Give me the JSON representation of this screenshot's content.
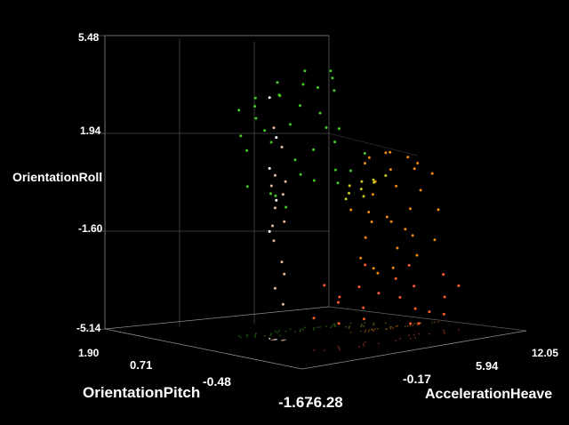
{
  "chart_data": {
    "type": "scatter",
    "projection": "3d",
    "title": "",
    "background": "#000000",
    "grid": true,
    "box_color": "#9a9a9a",
    "axes": {
      "z": {
        "label": "OrientationRoll",
        "range": [
          -5.14,
          5.48
        ],
        "ticks": [
          "5.48",
          "1.94",
          "-1.60",
          "-5.14"
        ]
      },
      "pitch": {
        "label": "OrientationPitch",
        "range": [
          -1.67,
          1.9
        ],
        "ticks": [
          "1.90",
          "0.71",
          "-0.48",
          "-1.67"
        ]
      },
      "heave": {
        "label": "AccelerationHeave",
        "range": [
          -6.28,
          12.05
        ],
        "ticks": [
          "-6.28",
          "-0.17",
          "5.94",
          "12.05"
        ]
      }
    },
    "series": [
      {
        "color": "#44cc22",
        "points": [
          [
            -1.2,
            0.6,
            3.6
          ],
          [
            -0.8,
            0.4,
            3.9
          ],
          [
            -0.3,
            0.5,
            4.1
          ],
          [
            0.2,
            0.6,
            3.2
          ],
          [
            0.8,
            0.3,
            4.3
          ],
          [
            1.5,
            0.5,
            4.6
          ],
          [
            2.1,
            0.6,
            4.0
          ],
          [
            2.9,
            0.4,
            3.7
          ],
          [
            3.6,
            0.5,
            4.4
          ],
          [
            4.2,
            0.6,
            4.8
          ],
          [
            4.8,
            0.5,
            4.2
          ],
          [
            5.4,
            0.4,
            4.9
          ],
          [
            6.0,
            0.5,
            4.5
          ],
          [
            6.6,
            0.6,
            3.9
          ],
          [
            1.0,
            0.5,
            2.3
          ],
          [
            2.5,
            0.4,
            1.6
          ],
          [
            3.4,
            0.5,
            0.9
          ],
          [
            -0.5,
            0.6,
            0.6
          ],
          [
            0.5,
            0.4,
            0.4
          ],
          [
            1.8,
            0.6,
            0.1
          ],
          [
            4.5,
            0.5,
            0.6
          ],
          [
            5.8,
            0.4,
            1.0
          ],
          [
            6.9,
            0.6,
            0.3
          ],
          [
            7.5,
            0.5,
            0.8
          ],
          [
            8.2,
            0.4,
            1.5
          ],
          [
            5.0,
            0.5,
            3.2
          ],
          [
            5.5,
            0.5,
            2.6
          ],
          [
            6.2,
            0.5,
            2.0
          ],
          [
            -1.5,
            0.5,
            2.7
          ],
          [
            -1.0,
            0.5,
            2.1
          ],
          [
            0.0,
            0.4,
            2.9
          ],
          [
            3.0,
            0.6,
            2.8
          ],
          [
            4.0,
            0.4,
            1.9
          ],
          [
            7.0,
            0.6,
            2.4
          ],
          [
            2.2,
            0.5,
            -0.3
          ]
        ]
      },
      {
        "color": "#ee8811",
        "points": [
          [
            5.5,
            -0.2,
            1.7
          ],
          [
            6.3,
            -0.1,
            1.8
          ],
          [
            7.2,
            -0.2,
            2.0
          ],
          [
            8.0,
            -0.1,
            1.9
          ],
          [
            9.0,
            -0.2,
            1.7
          ],
          [
            10.0,
            -0.1,
            1.1
          ],
          [
            11.0,
            -0.2,
            0.9
          ],
          [
            6.8,
            -0.1,
            0.8
          ],
          [
            7.6,
            -0.2,
            1.3
          ],
          [
            8.5,
            -0.1,
            0.5
          ],
          [
            5.8,
            -0.2,
            -0.3
          ],
          [
            6.5,
            -0.1,
            -0.8
          ],
          [
            7.3,
            -0.2,
            -0.6
          ],
          [
            8.1,
            -0.1,
            -0.9
          ],
          [
            9.2,
            -0.2,
            -0.4
          ],
          [
            10.5,
            -0.1,
            0.2
          ],
          [
            11.5,
            -0.2,
            -0.6
          ],
          [
            5.6,
            -0.1,
            -2.2
          ],
          [
            6.2,
            -0.2,
            -2.6
          ],
          [
            7.0,
            -0.1,
            -2.9
          ],
          [
            7.8,
            -0.2,
            -2.7
          ],
          [
            8.6,
            -0.1,
            -2.0
          ],
          [
            9.4,
            -0.2,
            -1.5
          ],
          [
            10.2,
            -0.1,
            -2.4
          ],
          [
            11.2,
            -0.2,
            -1.8
          ],
          [
            6.0,
            -0.1,
            -1.4
          ],
          [
            8.8,
            -0.2,
            -1.2
          ],
          [
            4.8,
            -0.1,
            -0.2
          ],
          [
            9.8,
            -0.2,
            1.4
          ],
          [
            6.6,
            -0.1,
            0.3
          ]
        ]
      },
      {
        "color": "#ff5a2a",
        "points": [
          [
            -1.0,
            -0.9,
            -2.4
          ],
          [
            -0.2,
            -1.0,
            -2.9
          ],
          [
            0.6,
            -0.8,
            -3.3
          ],
          [
            1.4,
            -1.0,
            -2.6
          ],
          [
            2.2,
            -0.9,
            -3.6
          ],
          [
            3.0,
            -1.0,
            -3.0
          ],
          [
            -1.4,
            -0.8,
            -3.8
          ],
          [
            0.2,
            -0.9,
            -4.1
          ],
          [
            1.8,
            -1.0,
            -4.0
          ],
          [
            2.8,
            -0.8,
            -1.9
          ],
          [
            5.2,
            -0.9,
            -3.4
          ],
          [
            6.0,
            -1.0,
            -3.9
          ],
          [
            6.8,
            -0.8,
            -3.1
          ],
          [
            7.6,
            -0.9,
            -4.2
          ],
          [
            8.4,
            -1.0,
            -3.6
          ],
          [
            9.2,
            -0.8,
            -2.8
          ],
          [
            10.0,
            -0.9,
            -3.3
          ],
          [
            5.6,
            -1.0,
            -4.5
          ],
          [
            7.2,
            -0.8,
            -4.7
          ],
          [
            8.8,
            -0.9,
            -4.4
          ],
          [
            4.4,
            -1.0,
            -2.5
          ],
          [
            6.4,
            -0.8,
            -2.2
          ]
        ]
      },
      {
        "color": "#e8b89a",
        "points": [
          [
            -0.6,
            0.1,
            3.3
          ],
          [
            -0.4,
            0.0,
            2.6
          ],
          [
            -0.5,
            0.1,
            1.4
          ],
          [
            -0.3,
            0.0,
            0.7
          ],
          [
            -0.5,
            0.1,
            0.1
          ],
          [
            -0.2,
            0.0,
            -0.4
          ],
          [
            -0.6,
            0.1,
            -1.2
          ],
          [
            -0.4,
            0.0,
            -2.0
          ],
          [
            -0.5,
            0.1,
            -3.1
          ],
          [
            -0.3,
            0.0,
            -3.7
          ],
          [
            -0.8,
            0.1,
            1.0
          ],
          [
            -0.1,
            0.0,
            1.2
          ],
          [
            -0.7,
            0.1,
            -0.6
          ],
          [
            -0.2,
            0.0,
            -2.5
          ]
        ]
      },
      {
        "color": "#c8c820",
        "points": [
          [
            6.0,
            0.2,
            0.2
          ],
          [
            6.5,
            0.3,
            0.4
          ],
          [
            7.0,
            0.2,
            0.3
          ],
          [
            7.5,
            0.3,
            0.5
          ],
          [
            8.0,
            0.2,
            0.6
          ],
          [
            8.5,
            0.3,
            0.4
          ],
          [
            9.0,
            0.2,
            0.7
          ],
          [
            6.2,
            0.3,
            -0.1
          ],
          [
            7.2,
            0.2,
            0.0
          ]
        ]
      },
      {
        "color": "#ffffff",
        "points": [
          [
            -0.5,
            0.2,
            4.4
          ],
          [
            -0.4,
            0.1,
            2.9
          ],
          [
            -0.5,
            0.2,
            1.6
          ],
          [
            -0.4,
            0.1,
            0.4
          ],
          [
            -0.5,
            0.2,
            -0.9
          ]
        ]
      }
    ]
  }
}
